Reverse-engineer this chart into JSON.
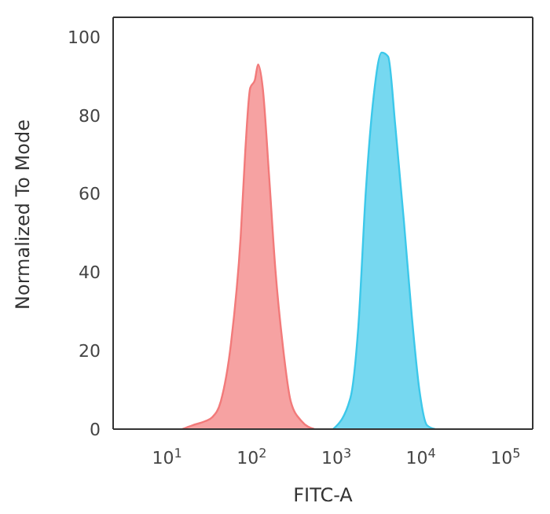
{
  "chart_data": {
    "type": "area",
    "xlabel": "FITC-A",
    "ylabel": "Normalized To Mode",
    "log": "x",
    "grid": false,
    "legend": false,
    "xlim": [
      2.3,
      210000
    ],
    "xticks": [
      {
        "value": 10,
        "label": "10$^{1}$"
      },
      {
        "value": 100,
        "label": "10$^{2}$"
      },
      {
        "value": 1000,
        "label": "10$^{3}$"
      },
      {
        "value": 10000,
        "label": "10$^{4}$"
      },
      {
        "value": 100000,
        "label": "10$^{5}$"
      }
    ],
    "ylim": [
      0,
      105
    ],
    "yticks": [
      0,
      20,
      40,
      60,
      80,
      100
    ],
    "series": [
      {
        "color": "#f27a7a",
        "x": [
          15,
          20,
          28,
          34,
          43,
          57,
          74,
          84,
          96,
          109,
          119,
          135,
          160,
          190,
          234,
          290,
          390,
          550
        ],
        "values": [
          0,
          1,
          2,
          3,
          7,
          22,
          49,
          71,
          87,
          89,
          93,
          87,
          65,
          41,
          21,
          7,
          2,
          0
        ]
      },
      {
        "color": "#3cc8ea",
        "x": [
          918,
          1470,
          1820,
          2240,
          2770,
          3440,
          4100,
          5000,
          6300,
          7800,
          9600,
          11800,
          14700
        ],
        "values": [
          0,
          8,
          26,
          61,
          85,
          96,
          95,
          77,
          53,
          29,
          10,
          1,
          0
        ]
      }
    ]
  }
}
